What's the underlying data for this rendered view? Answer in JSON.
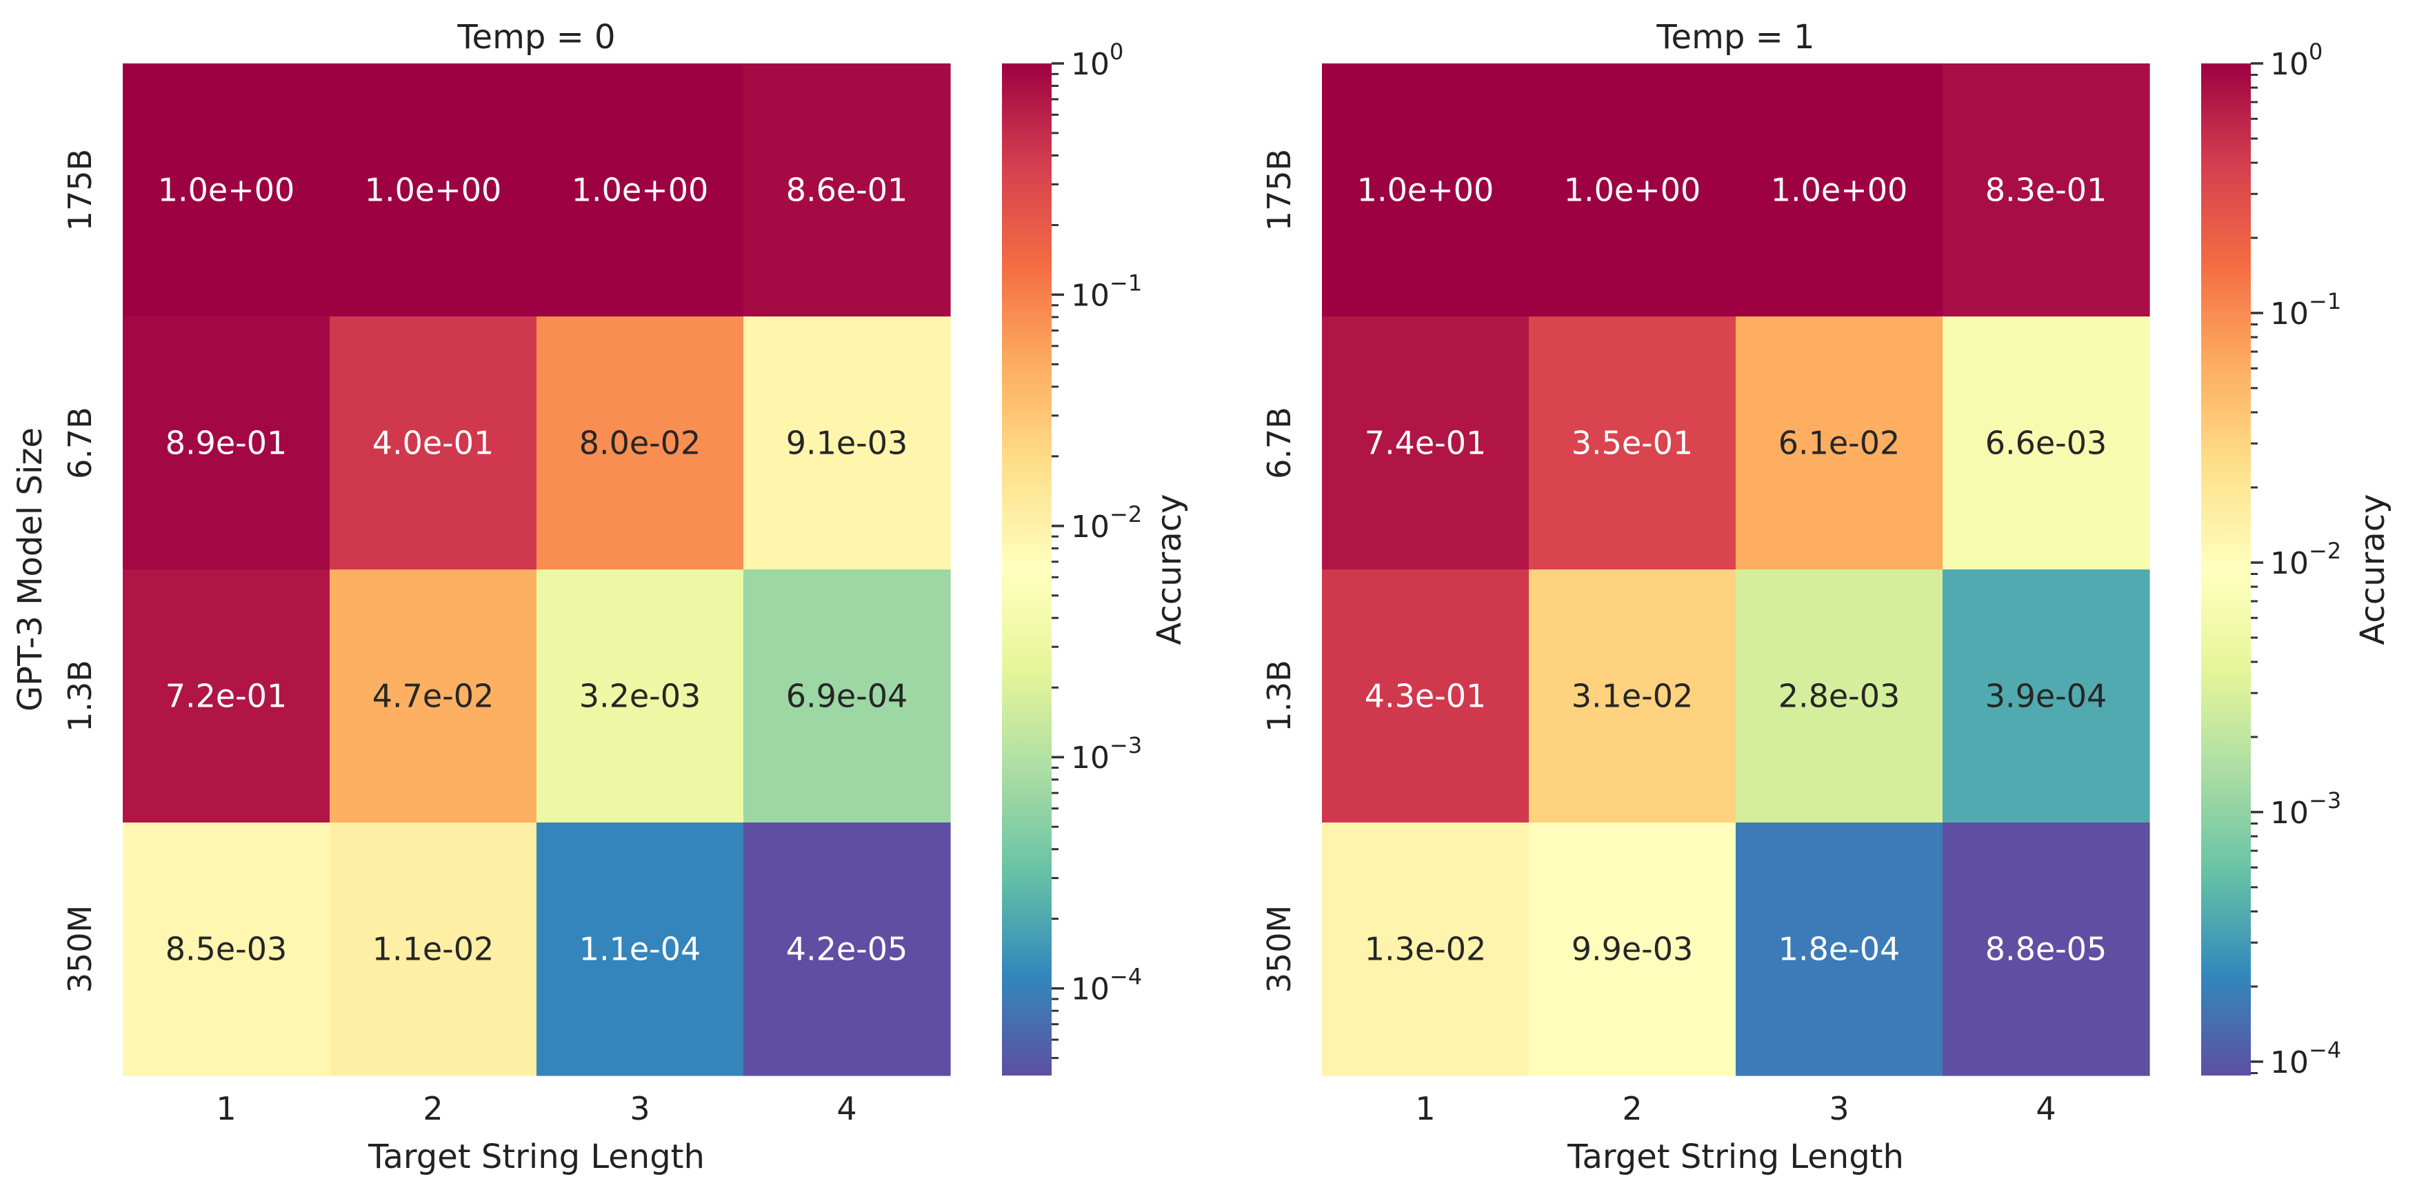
{
  "chart_data": [
    {
      "type": "heatmap",
      "title": "Temp = 0",
      "xlabel": "Target String Length",
      "ylabel": "GPT-3 Model Size",
      "x_categories": [
        "1",
        "2",
        "3",
        "4"
      ],
      "y_categories": [
        "175B",
        "6.7B",
        "1.3B",
        "350M"
      ],
      "values": [
        [
          1.0,
          1.0,
          1.0,
          0.86
        ],
        [
          0.89,
          0.4,
          0.08,
          0.0091
        ],
        [
          0.72,
          0.047,
          0.0032,
          0.00069
        ],
        [
          0.0085,
          0.011,
          0.00011,
          4.2e-05
        ]
      ],
      "cell_labels": [
        [
          "1.0e+00",
          "1.0e+00",
          "1.0e+00",
          "8.6e-01"
        ],
        [
          "8.9e-01",
          "4.0e-01",
          "8.0e-02",
          "9.1e-03"
        ],
        [
          "7.2e-01",
          "4.7e-02",
          "3.2e-03",
          "6.9e-04"
        ],
        [
          "8.5e-03",
          "1.1e-02",
          "1.1e-04",
          "4.2e-05"
        ]
      ],
      "colorbar": {
        "label": "Accuracy",
        "scale": "log",
        "range": [
          4.2e-05,
          1.0
        ],
        "major_ticks": [
          1.0,
          0.1,
          0.01,
          0.001,
          0.0001
        ],
        "tick_labels": [
          {
            "base": "10",
            "exp": "0"
          },
          {
            "base": "10",
            "exp": "−1"
          },
          {
            "base": "10",
            "exp": "−2"
          },
          {
            "base": "10",
            "exp": "−3"
          },
          {
            "base": "10",
            "exp": "−4"
          }
        ]
      },
      "colormap": "Spectral_r",
      "grid": false
    },
    {
      "type": "heatmap",
      "title": "Temp = 1",
      "xlabel": "Target String Length",
      "ylabel": "",
      "x_categories": [
        "1",
        "2",
        "3",
        "4"
      ],
      "y_categories": [
        "175B",
        "6.7B",
        "1.3B",
        "350M"
      ],
      "values": [
        [
          1.0,
          1.0,
          1.0,
          0.83
        ],
        [
          0.74,
          0.35,
          0.061,
          0.0066
        ],
        [
          0.43,
          0.031,
          0.0028,
          0.00039
        ],
        [
          0.013,
          0.0099,
          0.00018,
          8.8e-05
        ]
      ],
      "cell_labels": [
        [
          "1.0e+00",
          "1.0e+00",
          "1.0e+00",
          "8.3e-01"
        ],
        [
          "7.4e-01",
          "3.5e-01",
          "6.1e-02",
          "6.6e-03"
        ],
        [
          "4.3e-01",
          "3.1e-02",
          "2.8e-03",
          "3.9e-04"
        ],
        [
          "1.3e-02",
          "9.9e-03",
          "1.8e-04",
          "8.8e-05"
        ]
      ],
      "colorbar": {
        "label": "Accuracy",
        "scale": "log",
        "range": [
          8.8e-05,
          1.0
        ],
        "major_ticks": [
          1.0,
          0.1,
          0.01,
          0.001,
          0.0001
        ],
        "tick_labels": [
          {
            "base": "10",
            "exp": "0"
          },
          {
            "base": "10",
            "exp": "−1"
          },
          {
            "base": "10",
            "exp": "−2"
          },
          {
            "base": "10",
            "exp": "−3"
          },
          {
            "base": "10",
            "exp": "−4"
          }
        ]
      },
      "colormap": "Spectral_r",
      "grid": false
    }
  ]
}
